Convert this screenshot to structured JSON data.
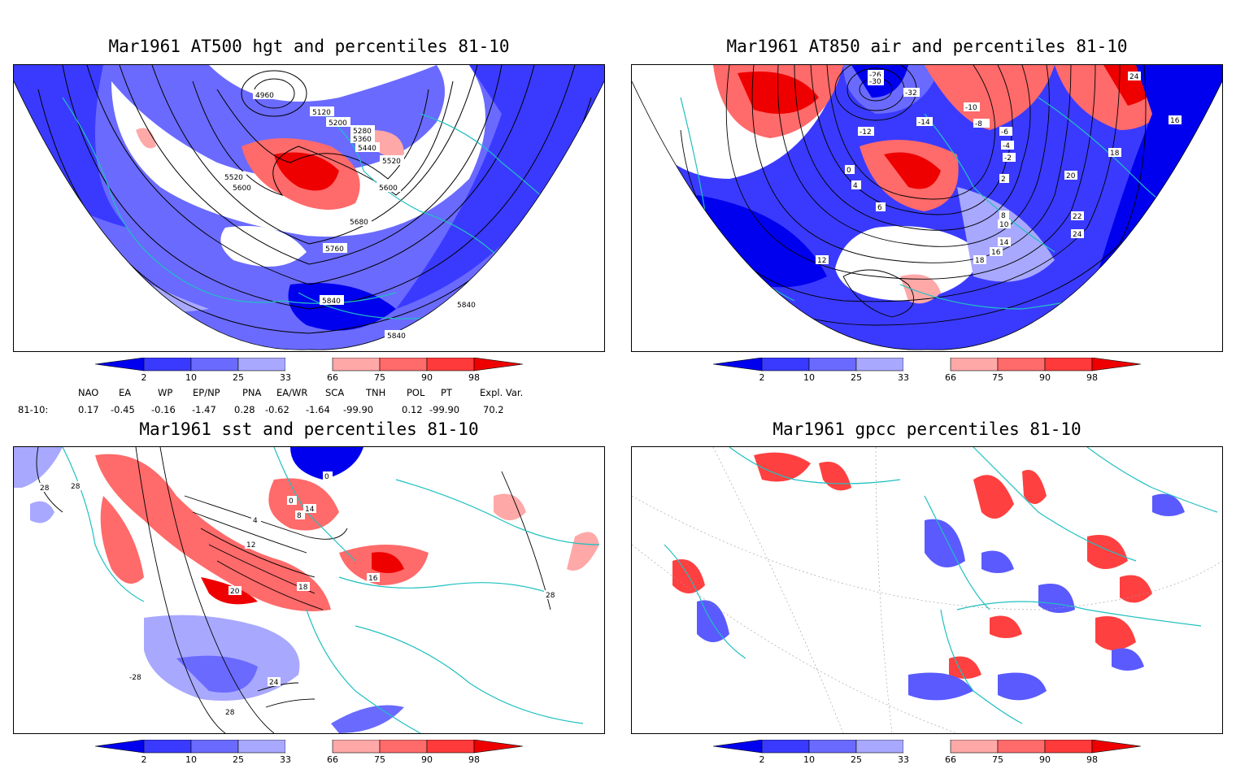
{
  "panels": [
    {
      "id": "hgt",
      "title": "Mar1961 AT500 hgt and percentiles 81-10",
      "contour_labels": [
        "4960",
        "5120",
        "5200",
        "5280",
        "5360",
        "5440",
        "5520",
        "5520",
        "5600",
        "5600",
        "5680",
        "5760",
        "5840",
        "5840",
        "5840"
      ]
    },
    {
      "id": "air",
      "title": "Mar1961 AT850 air and percentiles 81-10",
      "contour_labels": [
        "-26",
        "-30",
        "-32",
        "-10",
        "-8",
        "-12",
        "-14",
        "-6",
        "-4",
        "-2",
        "0",
        "2",
        "4",
        "6",
        "8",
        "10",
        "12",
        "14",
        "16",
        "18",
        "20",
        "22",
        "24",
        "18",
        "24",
        "16"
      ]
    },
    {
      "id": "sst",
      "title": "Mar1961 sst and percentiles 81-10",
      "contour_labels": [
        "28",
        "28",
        "0",
        "0",
        "4",
        "8",
        "12",
        "14",
        "16",
        "18",
        "20",
        "24",
        "28",
        "-28",
        "28"
      ]
    },
    {
      "id": "gpcc",
      "title": "Mar1961 gpcc percentiles 81-10",
      "contour_labels": []
    }
  ],
  "colorbar": {
    "ticks": [
      "2",
      "10",
      "25",
      "33",
      "66",
      "75",
      "90",
      "98"
    ],
    "colors": [
      "#0000ee",
      "#3a3aff",
      "#6a6aff",
      "#a8a8ff",
      "#ffffff",
      "#ffa8a8",
      "#ff6a6a",
      "#ff3a3a",
      "#ee0000"
    ]
  },
  "indices": {
    "headers": [
      "NAO",
      "EA",
      "WP",
      "EP/NP",
      "PNA",
      "EA/WR",
      "SCA",
      "TNH",
      "POL",
      "PT",
      "Expl. Var."
    ],
    "row_label": "81-10:",
    "values": [
      "0.17",
      "-0.45",
      "-0.16",
      "-1.47",
      "0.28",
      "-0.62",
      "-1.64",
      "-99.90",
      "0.12",
      "-99.90",
      "70.2"
    ]
  },
  "colors": {
    "coast": "#20c0c0",
    "contour": "#000000"
  }
}
